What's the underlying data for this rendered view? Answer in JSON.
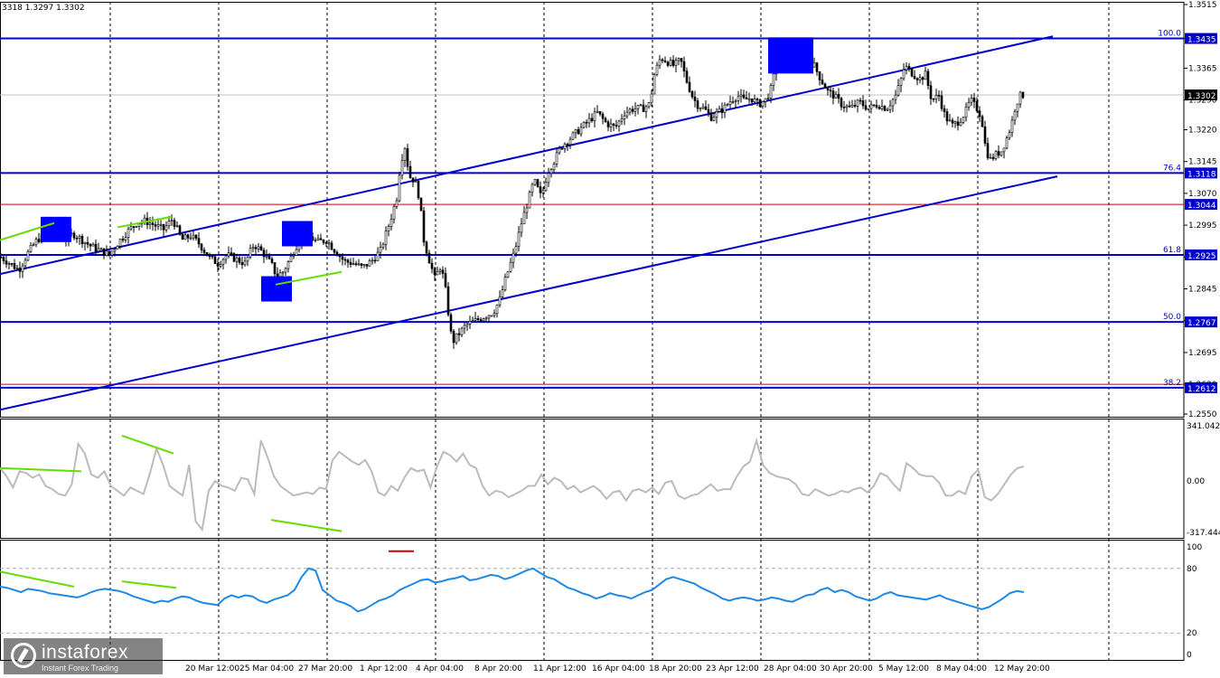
{
  "header": {
    "ohlc": "3318 1.3297 1.3302"
  },
  "watermark": {
    "brand": "instaforex",
    "tagline": "Instant Forex Trading"
  },
  "colors": {
    "candle": "#000000",
    "fib_line": "#0000cc",
    "red_line": "#cc0000",
    "trend_line": "#0000cc",
    "divergence": "#66dd00",
    "cci": "#bbbbbb",
    "rsi": "#1e88e5",
    "marker": "#0000ff",
    "grid": "#000000"
  },
  "chart_data": [
    {
      "type": "candlestick",
      "symbol_quote": "1.3302",
      "ylim": [
        1.255,
        1.3515
      ],
      "y_ticks": [
        "1.3515",
        "1.3435",
        "1.3365",
        "1.3290",
        "1.3220",
        "1.3145",
        "1.3070",
        "1.2995",
        "1.2920",
        "1.2845",
        "1.2770",
        "1.2695",
        "1.2620",
        "1.2550"
      ],
      "x_ticks": [
        "20 Mar 12:00",
        "25 Mar 04:00",
        "27 Mar 20:00",
        "1 Apr 12:00",
        "4 Apr 04:00",
        "8 Apr 20:00",
        "11 Apr 12:00",
        "16 Apr 04:00",
        "18 Apr 20:00",
        "23 Apr 12:00",
        "28 Apr 04:00",
        "30 Apr 20:00",
        "5 May 12:00",
        "8 May 04:00",
        "12 May 20:00"
      ],
      "fib_levels": [
        {
          "label": "100.0",
          "price": "1.3435",
          "value": 1.3435
        },
        {
          "label": "76.4",
          "price": "1.3118",
          "value": 1.3118
        },
        {
          "label": "61.8",
          "price": "1.2925",
          "value": 1.2925
        },
        {
          "label": "50.0",
          "price": "1.2767",
          "value": 1.2767
        },
        {
          "label": "38.2",
          "price": "1.2612",
          "value": 1.2612
        }
      ],
      "red_levels": [
        {
          "price": "1.3044",
          "value": 1.3044
        },
        {
          "price": "",
          "value": 1.262
        }
      ],
      "current_price_line": 1.3302,
      "close_path": [
        [
          0,
          1.292
        ],
        [
          10,
          1.2905
        ],
        [
          20,
          1.289
        ],
        [
          30,
          1.293
        ],
        [
          40,
          1.296
        ],
        [
          50,
          1.2975
        ],
        [
          60,
          1.299
        ],
        [
          70,
          1.296
        ],
        [
          80,
          1.2975
        ],
        [
          90,
          1.296
        ],
        [
          100,
          1.2945
        ],
        [
          110,
          1.2935
        ],
        [
          120,
          1.2925
        ],
        [
          130,
          1.2955
        ],
        [
          140,
          1.298
        ],
        [
          150,
          1.3
        ],
        [
          160,
          1.3005
        ],
        [
          170,
          1.2995
        ],
        [
          180,
          1.2985
        ],
        [
          190,
          1.301
        ],
        [
          200,
          1.296
        ],
        [
          210,
          1.297
        ],
        [
          220,
          1.295
        ],
        [
          230,
          1.292
        ],
        [
          240,
          1.2905
        ],
        [
          250,
          1.2925
        ],
        [
          260,
          1.2915
        ],
        [
          270,
          1.2905
        ],
        [
          280,
          1.295
        ],
        [
          290,
          1.293
        ],
        [
          300,
          1.29
        ],
        [
          305,
          1.2875
        ],
        [
          312,
          1.2885
        ],
        [
          320,
          1.2915
        ],
        [
          330,
          1.296
        ],
        [
          340,
          1.297
        ],
        [
          350,
          1.2955
        ],
        [
          360,
          1.296
        ],
        [
          370,
          1.2935
        ],
        [
          380,
          1.291
        ],
        [
          390,
          1.2905
        ],
        [
          400,
          1.2895
        ],
        [
          410,
          1.291
        ],
        [
          420,
          1.2935
        ],
        [
          430,
          1.3
        ],
        [
          438,
          1.306
        ],
        [
          442,
          1.314
        ],
        [
          447,
          1.318
        ],
        [
          452,
          1.311
        ],
        [
          458,
          1.31
        ],
        [
          463,
          1.306
        ],
        [
          468,
          1.296
        ],
        [
          473,
          1.292
        ],
        [
          480,
          1.287
        ],
        [
          487,
          1.29
        ],
        [
          493,
          1.283
        ],
        [
          497,
          1.275
        ],
        [
          500,
          1.272
        ],
        [
          507,
          1.274
        ],
        [
          515,
          1.276
        ],
        [
          525,
          1.277
        ],
        [
          535,
          1.278
        ],
        [
          545,
          1.279
        ],
        [
          552,
          1.282
        ],
        [
          560,
          1.288
        ],
        [
          568,
          1.293
        ],
        [
          576,
          1.3
        ],
        [
          583,
          1.305
        ],
        [
          590,
          1.31
        ],
        [
          598,
          1.306
        ],
        [
          605,
          1.312
        ],
        [
          613,
          1.315
        ],
        [
          620,
          1.318
        ],
        [
          630,
          1.32
        ],
        [
          640,
          1.322
        ],
        [
          650,
          1.324
        ],
        [
          660,
          1.326
        ],
        [
          670,
          1.3235
        ],
        [
          680,
          1.3225
        ],
        [
          690,
          1.326
        ],
        [
          700,
          1.327
        ],
        [
          710,
          1.327
        ],
        [
          718,
          1.328
        ],
        [
          723,
          1.335
        ],
        [
          730,
          1.339
        ],
        [
          738,
          1.338
        ],
        [
          745,
          1.337
        ],
        [
          752,
          1.3385
        ],
        [
          758,
          1.334
        ],
        [
          765,
          1.33
        ],
        [
          770,
          1.328
        ],
        [
          778,
          1.327
        ],
        [
          786,
          1.325
        ],
        [
          793,
          1.326
        ],
        [
          800,
          1.327
        ],
        [
          808,
          1.329
        ],
        [
          815,
          1.33
        ],
        [
          822,
          1.329
        ],
        [
          830,
          1.3295
        ],
        [
          838,
          1.328
        ],
        [
          846,
          1.329
        ],
        [
          853,
          1.332
        ],
        [
          858,
          1.338
        ],
        [
          863,
          1.342
        ],
        [
          870,
          1.341
        ],
        [
          878,
          1.3395
        ],
        [
          885,
          1.34
        ],
        [
          893,
          1.3385
        ],
        [
          900,
          1.337
        ],
        [
          907,
          1.334
        ],
        [
          915,
          1.331
        ],
        [
          922,
          1.33
        ],
        [
          930,
          1.328
        ],
        [
          940,
          1.327
        ],
        [
          950,
          1.3285
        ],
        [
          960,
          1.327
        ],
        [
          970,
          1.328
        ],
        [
          980,
          1.327
        ],
        [
          990,
          1.33
        ],
        [
          995,
          1.333
        ],
        [
          1000,
          1.337
        ],
        [
          1005,
          1.336
        ],
        [
          1010,
          1.335
        ],
        [
          1017,
          1.334
        ],
        [
          1023,
          1.335
        ],
        [
          1030,
          1.329
        ],
        [
          1038,
          1.33
        ],
        [
          1045,
          1.325
        ],
        [
          1053,
          1.323
        ],
        [
          1060,
          1.324
        ],
        [
          1067,
          1.326
        ],
        [
          1073,
          1.329
        ],
        [
          1080,
          1.327
        ],
        [
          1085,
          1.325
        ],
        [
          1090,
          1.317
        ],
        [
          1095,
          1.315
        ],
        [
          1100,
          1.316
        ],
        [
          1107,
          1.317
        ],
        [
          1113,
          1.32
        ],
        [
          1118,
          1.323
        ],
        [
          1123,
          1.328
        ],
        [
          1128,
          1.33
        ],
        [
          1133,
          1.3302
        ]
      ],
      "channels": [
        {
          "from": [
            0,
            1.288
          ],
          "to": [
            1165,
            1.344
          ]
        },
        {
          "from": [
            0,
            1.256
          ],
          "to": [
            1170,
            1.311
          ]
        }
      ],
      "divergences": [
        {
          "from": [
            0,
            1.296
          ],
          "to": [
            60,
            1.3
          ]
        },
        {
          "from": [
            130,
            1.299
          ],
          "to": [
            190,
            1.3015
          ]
        },
        {
          "from": [
            305,
            1.2855
          ],
          "to": [
            378,
            1.2885
          ]
        }
      ],
      "markers": [
        {
          "at": [
            62,
            1.2985
          ]
        },
        {
          "at": [
            329,
            1.2975
          ]
        },
        {
          "at": [
            306,
            1.2845
          ]
        },
        {
          "at": [
            875,
            1.3395
          ]
        }
      ]
    },
    {
      "type": "line",
      "name": "CCI",
      "y_ticks": [
        "341.0423",
        "0.00",
        "-317.444"
      ],
      "ylim": [
        -317.444,
        341.0423
      ],
      "values": [
        80,
        30,
        -40,
        60,
        50,
        20,
        40,
        -30,
        -50,
        -80,
        -90,
        -20,
        230,
        170,
        40,
        20,
        60,
        -30,
        -60,
        -90,
        -40,
        -60,
        -80,
        50,
        200,
        100,
        -30,
        -60,
        -90,
        100,
        -250,
        -300,
        -60,
        0,
        -30,
        -40,
        -60,
        20,
        10,
        -80,
        250,
        150,
        30,
        -30,
        -60,
        -90,
        -80,
        -70,
        -80,
        -40,
        -50,
        130,
        180,
        150,
        120,
        100,
        130,
        60,
        -70,
        -90,
        -30,
        -60,
        20,
        80,
        60,
        70,
        -40,
        90,
        180,
        160,
        120,
        170,
        100,
        80,
        -30,
        -90,
        -60,
        -70,
        -100,
        -80,
        -60,
        -30,
        -30,
        40,
        -20,
        20,
        0,
        -50,
        -30,
        -70,
        -50,
        -30,
        -60,
        -110,
        -70,
        -60,
        -120,
        -60,
        -50,
        -70,
        -40,
        -80,
        -10,
        0,
        -90,
        -110,
        -90,
        -80,
        -50,
        -20,
        -60,
        -50,
        -50,
        30,
        90,
        120,
        250,
        100,
        50,
        30,
        20,
        10,
        -20,
        -80,
        -90,
        -50,
        -70,
        -90,
        -80,
        -60,
        -70,
        -50,
        -40,
        -70,
        -30,
        50,
        30,
        -20,
        -60,
        110,
        80,
        40,
        30,
        30,
        -10,
        -90,
        -90,
        -60,
        -80,
        30,
        70,
        -100,
        -120,
        -80,
        -20,
        40,
        80,
        90
      ]
    },
    {
      "type": "line",
      "name": "RSI",
      "y_ticks": [
        "100",
        "80",
        "20",
        "0"
      ],
      "ylim": [
        0,
        100
      ],
      "levels": [
        80,
        20
      ],
      "values": [
        63,
        62,
        60,
        58,
        61,
        60,
        59,
        57,
        56,
        55,
        54,
        53,
        55,
        58,
        60,
        61,
        60,
        59,
        57,
        54,
        52,
        50,
        48,
        50,
        49,
        52,
        54,
        53,
        50,
        48,
        47,
        46,
        52,
        55,
        53,
        55,
        54,
        50,
        48,
        51,
        53,
        55,
        60,
        72,
        80,
        78,
        60,
        55,
        50,
        48,
        45,
        40,
        42,
        46,
        50,
        52,
        55,
        60,
        63,
        66,
        69,
        70,
        67,
        68,
        70,
        71,
        73,
        69,
        70,
        72,
        74,
        73,
        70,
        72,
        75,
        78,
        80,
        76,
        72,
        70,
        66,
        62,
        60,
        57,
        55,
        52,
        54,
        57,
        55,
        54,
        52,
        55,
        58,
        60,
        65,
        70,
        72,
        70,
        68,
        66,
        62,
        59,
        56,
        52,
        50,
        52,
        53,
        52,
        50,
        51,
        53,
        52,
        50,
        49,
        52,
        55,
        56,
        60,
        62,
        58,
        60,
        58,
        54,
        52,
        50,
        52,
        56,
        58,
        55,
        54,
        53,
        52,
        51,
        53,
        55,
        52,
        50,
        48,
        46,
        44,
        42,
        44,
        48,
        52,
        57,
        59,
        58
      ]
    }
  ]
}
